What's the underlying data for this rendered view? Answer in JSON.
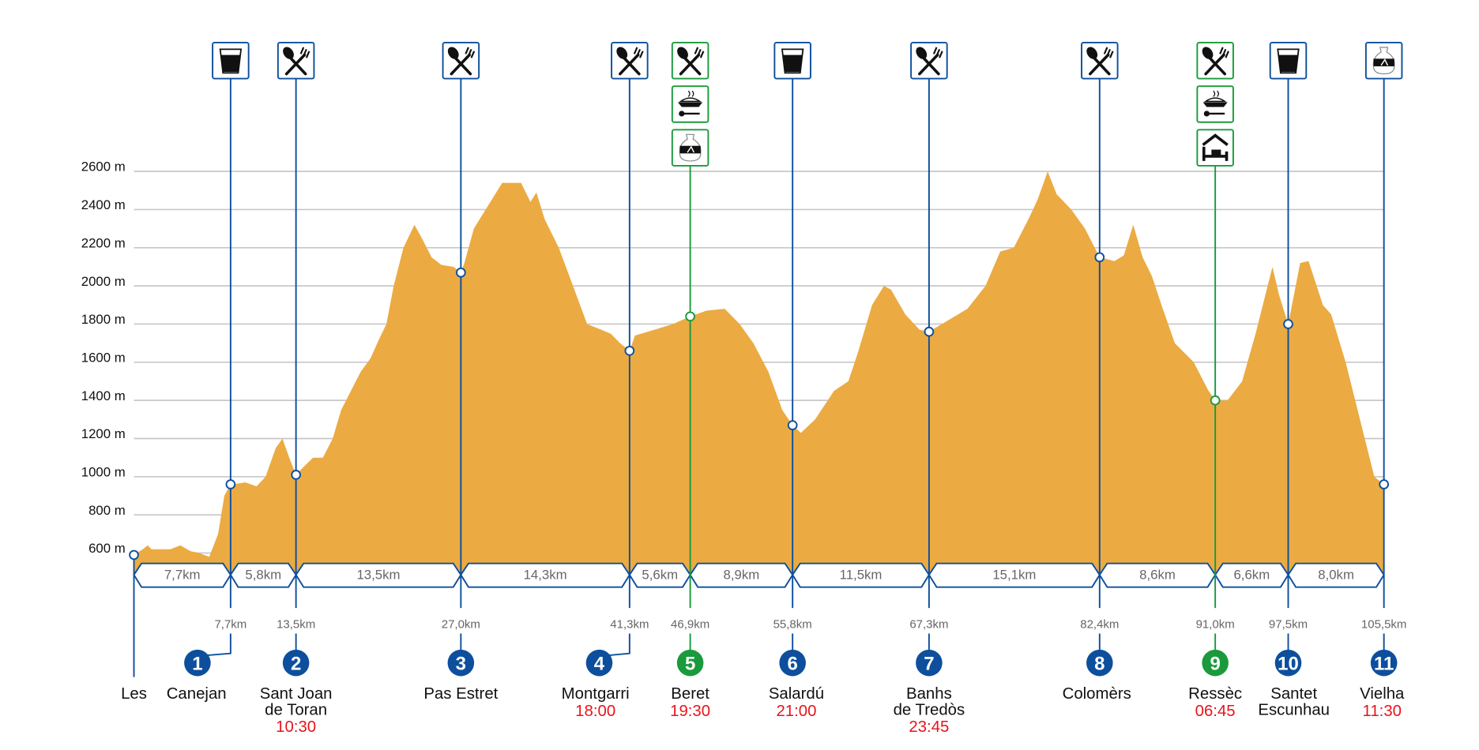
{
  "chart_data": {
    "type": "area",
    "title": "",
    "xlabel": "",
    "ylabel": "",
    "y_unit": "m",
    "ylim": [
      600,
      2600
    ],
    "y_ticks": [
      "600 m",
      "800 m",
      "1000 m",
      "1200 m",
      "1400 m",
      "1600 m",
      "1800 m",
      "2000 m",
      "2200 m",
      "2400 m",
      "2600 m"
    ],
    "y_tick_values": [
      600,
      800,
      1000,
      1200,
      1400,
      1600,
      1800,
      2000,
      2200,
      2400,
      2600
    ],
    "grid": true,
    "colors": {
      "profile": "#ebab42",
      "route": "#0d4f9c",
      "alt": "#1a9a3c",
      "grid": "#c8c8c8",
      "time": "#e8141b"
    },
    "profile_km_elev": [
      [
        0,
        590
      ],
      [
        0.7,
        620
      ],
      [
        1.1,
        640
      ],
      [
        1.4,
        620
      ],
      [
        2.9,
        620
      ],
      [
        3.7,
        640
      ],
      [
        4.5,
        610
      ],
      [
        5.2,
        600
      ],
      [
        6.0,
        580
      ],
      [
        6.7,
        700
      ],
      [
        7.2,
        900
      ],
      [
        7.7,
        960
      ],
      [
        7.9,
        960
      ],
      [
        9.0,
        970
      ],
      [
        10.0,
        950
      ],
      [
        10.8,
        1000
      ],
      [
        11.7,
        1150
      ],
      [
        12.3,
        1200
      ],
      [
        12.9,
        1100
      ],
      [
        13.5,
        1010
      ],
      [
        14.1,
        1050
      ],
      [
        14.9,
        1100
      ],
      [
        15.7,
        1100
      ],
      [
        16.5,
        1200
      ],
      [
        17.2,
        1350
      ],
      [
        18.0,
        1450
      ],
      [
        18.8,
        1550
      ],
      [
        19.6,
        1620
      ],
      [
        20.3,
        1720
      ],
      [
        20.9,
        1800
      ],
      [
        21.5,
        2000
      ],
      [
        22.3,
        2200
      ],
      [
        23.2,
        2320
      ],
      [
        23.8,
        2250
      ],
      [
        24.6,
        2150
      ],
      [
        25.4,
        2110
      ],
      [
        26.4,
        2100
      ],
      [
        27.0,
        2070
      ],
      [
        27.3,
        2120
      ],
      [
        28.1,
        2300
      ],
      [
        29.3,
        2420
      ],
      [
        30.5,
        2540
      ],
      [
        32.1,
        2540
      ],
      [
        32.9,
        2440
      ],
      [
        33.4,
        2490
      ],
      [
        34.1,
        2350
      ],
      [
        35.3,
        2200
      ],
      [
        36.5,
        2000
      ],
      [
        37.7,
        1800
      ],
      [
        38.9,
        1770
      ],
      [
        39.7,
        1750
      ],
      [
        40.5,
        1700
      ],
      [
        41.3,
        1660
      ],
      [
        41.8,
        1740
      ],
      [
        43.6,
        1770
      ],
      [
        45.3,
        1800
      ],
      [
        46.9,
        1840
      ],
      [
        48.3,
        1870
      ],
      [
        49.9,
        1880
      ],
      [
        51.2,
        1800
      ],
      [
        52.4,
        1700
      ],
      [
        53.7,
        1550
      ],
      [
        54.9,
        1350
      ],
      [
        55.8,
        1270
      ],
      [
        56.5,
        1230
      ],
      [
        57.7,
        1300
      ],
      [
        59.3,
        1450
      ],
      [
        60.5,
        1500
      ],
      [
        61.3,
        1650
      ],
      [
        62.5,
        1900
      ],
      [
        63.5,
        2000
      ],
      [
        64.1,
        1980
      ],
      [
        65.3,
        1850
      ],
      [
        66.5,
        1770
      ],
      [
        67.3,
        1760
      ],
      [
        69.0,
        1820
      ],
      [
        70.7,
        1880
      ],
      [
        72.3,
        2000
      ],
      [
        73.6,
        2180
      ],
      [
        74.8,
        2200
      ],
      [
        76.1,
        2350
      ],
      [
        76.9,
        2450
      ],
      [
        77.8,
        2600
      ],
      [
        78.6,
        2480
      ],
      [
        79.9,
        2400
      ],
      [
        81.1,
        2300
      ],
      [
        82.4,
        2150
      ],
      [
        83.5,
        2130
      ],
      [
        84.2,
        2160
      ],
      [
        84.9,
        2320
      ],
      [
        85.6,
        2150
      ],
      [
        86.3,
        2050
      ],
      [
        87.0,
        1900
      ],
      [
        88.0,
        1700
      ],
      [
        89.4,
        1600
      ],
      [
        90.5,
        1450
      ],
      [
        91.0,
        1400
      ],
      [
        92.1,
        1400
      ],
      [
        93.4,
        1500
      ],
      [
        94.6,
        1750
      ],
      [
        96.1,
        2100
      ],
      [
        96.7,
        1950
      ],
      [
        97.5,
        1800
      ],
      [
        98.5,
        2120
      ],
      [
        99.2,
        2130
      ],
      [
        100.4,
        1900
      ],
      [
        101.1,
        1850
      ],
      [
        102.3,
        1600
      ],
      [
        103.9,
        1200
      ],
      [
        104.7,
        1000
      ],
      [
        105.5,
        960
      ]
    ],
    "segments": [
      "7,7km",
      "5,8km",
      "13,5km",
      "14,3km",
      "5,6km",
      "8,9km",
      "11,5km",
      "15,1km",
      "8,6km",
      "6,6km",
      "8,0km"
    ],
    "waypoints": [
      {
        "num": "",
        "name": [
          "Les"
        ],
        "km": 0,
        "km_label": "",
        "elev": 590,
        "time": "",
        "color": "blue",
        "icons": []
      },
      {
        "num": "1",
        "name": [
          "Canejan"
        ],
        "km": 7.7,
        "km_label": "7,7km",
        "elev": 960,
        "time": "",
        "color": "blue",
        "icons": [
          "glass"
        ]
      },
      {
        "num": "2",
        "name": [
          "Sant Joan",
          "de Toran"
        ],
        "km": 13.5,
        "km_label": "13,5km",
        "elev": 1010,
        "time": "10:30",
        "color": "blue",
        "icons": [
          "cutlery"
        ]
      },
      {
        "num": "3",
        "name": [
          "Pas Estret"
        ],
        "km": 27.0,
        "km_label": "27,0km",
        "elev": 2070,
        "time": "",
        "color": "blue",
        "icons": [
          "cutlery"
        ]
      },
      {
        "num": "4",
        "name": [
          "Montgarri"
        ],
        "km": 41.3,
        "km_label": "41,3km",
        "elev": 1660,
        "time": "18:00",
        "color": "blue",
        "icons": [
          "cutlery"
        ]
      },
      {
        "num": "5",
        "name": [
          "Beret"
        ],
        "km": 46.9,
        "km_label": "46,9km",
        "elev": 1840,
        "time": "19:30",
        "color": "green",
        "icons": [
          "cutlery",
          "dish",
          "bag"
        ]
      },
      {
        "num": "6",
        "name": [
          "Salardú"
        ],
        "km": 55.8,
        "km_label": "55,8km",
        "elev": 1270,
        "time": "21:00",
        "color": "blue",
        "icons": [
          "glass"
        ]
      },
      {
        "num": "7",
        "name": [
          "Banhs",
          "de Tredòs"
        ],
        "km": 67.3,
        "km_label": "67,3km",
        "elev": 1760,
        "time": "23:45",
        "color": "blue",
        "icons": [
          "cutlery"
        ]
      },
      {
        "num": "8",
        "name": [
          "Colomèrs"
        ],
        "km": 82.4,
        "km_label": "82,4km",
        "elev": 2150,
        "time": "",
        "color": "blue",
        "icons": [
          "cutlery"
        ]
      },
      {
        "num": "9",
        "name": [
          "Ressèc"
        ],
        "km": 91.0,
        "km_label": "91,0km",
        "elev": 1400,
        "time": "06:45",
        "color": "green",
        "icons": [
          "cutlery",
          "dish",
          "refuge"
        ]
      },
      {
        "num": "10",
        "name": [
          "Santet",
          "Escunhau"
        ],
        "km": 97.5,
        "km_label": "97,5km",
        "elev": 1800,
        "time": "",
        "color": "blue",
        "icons": [
          "glass"
        ]
      },
      {
        "num": "11",
        "name": [
          "Vielha"
        ],
        "km": 105.5,
        "km_label": "105,5km",
        "elev": 960,
        "time": "11:30",
        "color": "blue",
        "icons": [
          "bag"
        ]
      }
    ]
  }
}
